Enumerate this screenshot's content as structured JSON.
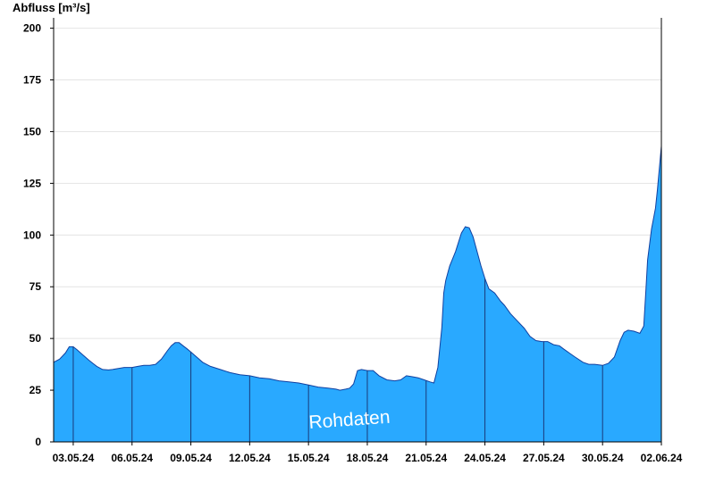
{
  "chart_data": {
    "type": "area",
    "title": "",
    "ylabel": "Abfluss [m³/s]",
    "xlabel": "",
    "watermark": "Rohdaten",
    "ylim": [
      0,
      205
    ],
    "yticks": [
      0,
      25,
      50,
      75,
      100,
      125,
      150,
      175,
      200
    ],
    "xlim": [
      2.0,
      33.0
    ],
    "xticks": [
      {
        "x": 3,
        "label": "03.05.24"
      },
      {
        "x": 6,
        "label": "06.05.24"
      },
      {
        "x": 9,
        "label": "09.05.24"
      },
      {
        "x": 12,
        "label": "12.05.24"
      },
      {
        "x": 15,
        "label": "15.05.24"
      },
      {
        "x": 18,
        "label": "18.05.24"
      },
      {
        "x": 21,
        "label": "21.05.24"
      },
      {
        "x": 24,
        "label": "24.05.24"
      },
      {
        "x": 27,
        "label": "27.05.24"
      },
      {
        "x": 30,
        "label": "30.05.24"
      },
      {
        "x": 33,
        "label": "02.06.24"
      }
    ],
    "grid": true,
    "colors": {
      "fill": "#29a9ff",
      "line": "#1040a0",
      "grid": "#e4e4e4",
      "day_divider": "#1a3a7a"
    },
    "series": [
      {
        "name": "",
        "x": [
          2.0,
          2.3,
          2.6,
          2.8,
          3.0,
          3.2,
          3.5,
          3.8,
          4.0,
          4.2,
          4.5,
          4.8,
          5.0,
          5.3,
          5.6,
          6.0,
          6.3,
          6.6,
          6.9,
          7.2,
          7.5,
          7.8,
          8.0,
          8.2,
          8.4,
          8.6,
          8.8,
          9.0,
          9.3,
          9.6,
          10.0,
          10.5,
          11.0,
          11.5,
          12.0,
          12.5,
          13.0,
          13.5,
          14.0,
          14.5,
          15.0,
          15.5,
          16.0,
          16.4,
          16.6,
          16.9,
          17.1,
          17.3,
          17.5,
          17.7,
          18.0,
          18.3,
          18.6,
          19.0,
          19.4,
          19.7,
          20.0,
          20.3,
          20.6,
          20.9,
          21.2,
          21.4,
          21.6,
          21.8,
          21.9,
          22.0,
          22.2,
          22.5,
          22.8,
          23.0,
          23.2,
          23.4,
          23.6,
          23.8,
          24.0,
          24.2,
          24.5,
          24.8,
          25.0,
          25.3,
          25.6,
          26.0,
          26.3,
          26.6,
          26.9,
          27.2,
          27.5,
          27.8,
          28.0,
          28.3,
          28.6,
          29.0,
          29.3,
          29.6,
          30.0,
          30.3,
          30.6,
          30.9,
          31.1,
          31.3,
          31.6,
          31.9,
          32.1,
          32.2,
          32.3,
          32.5,
          32.7,
          32.8,
          33.0
        ],
        "y": [
          38.5,
          40,
          43,
          46,
          46,
          44.5,
          42,
          39.5,
          38,
          36.5,
          35,
          34.8,
          35,
          35.5,
          36,
          36,
          36.5,
          37,
          37,
          37.5,
          40,
          44,
          46.5,
          48,
          48,
          46.5,
          45,
          43.5,
          41,
          38.5,
          36.5,
          35,
          33.5,
          32.5,
          32,
          31,
          30.5,
          29.5,
          29,
          28.5,
          27.5,
          26.5,
          26,
          25.5,
          25,
          25.5,
          26,
          28,
          34.5,
          35,
          34.5,
          34.5,
          32,
          30,
          29.5,
          30,
          32,
          31.5,
          31,
          30,
          29,
          28.5,
          36,
          55,
          72,
          78,
          85,
          92,
          101,
          104,
          103.5,
          99,
          92,
          85,
          79,
          74,
          72,
          68,
          66,
          62,
          59,
          55,
          51,
          49,
          48.5,
          48.5,
          47,
          46.5,
          45,
          43,
          41,
          38.5,
          37.5,
          37.5,
          37,
          38,
          41,
          49,
          53,
          54,
          53.5,
          52.5,
          56,
          72,
          88,
          103,
          113,
          122,
          143
        ]
      }
    ]
  }
}
